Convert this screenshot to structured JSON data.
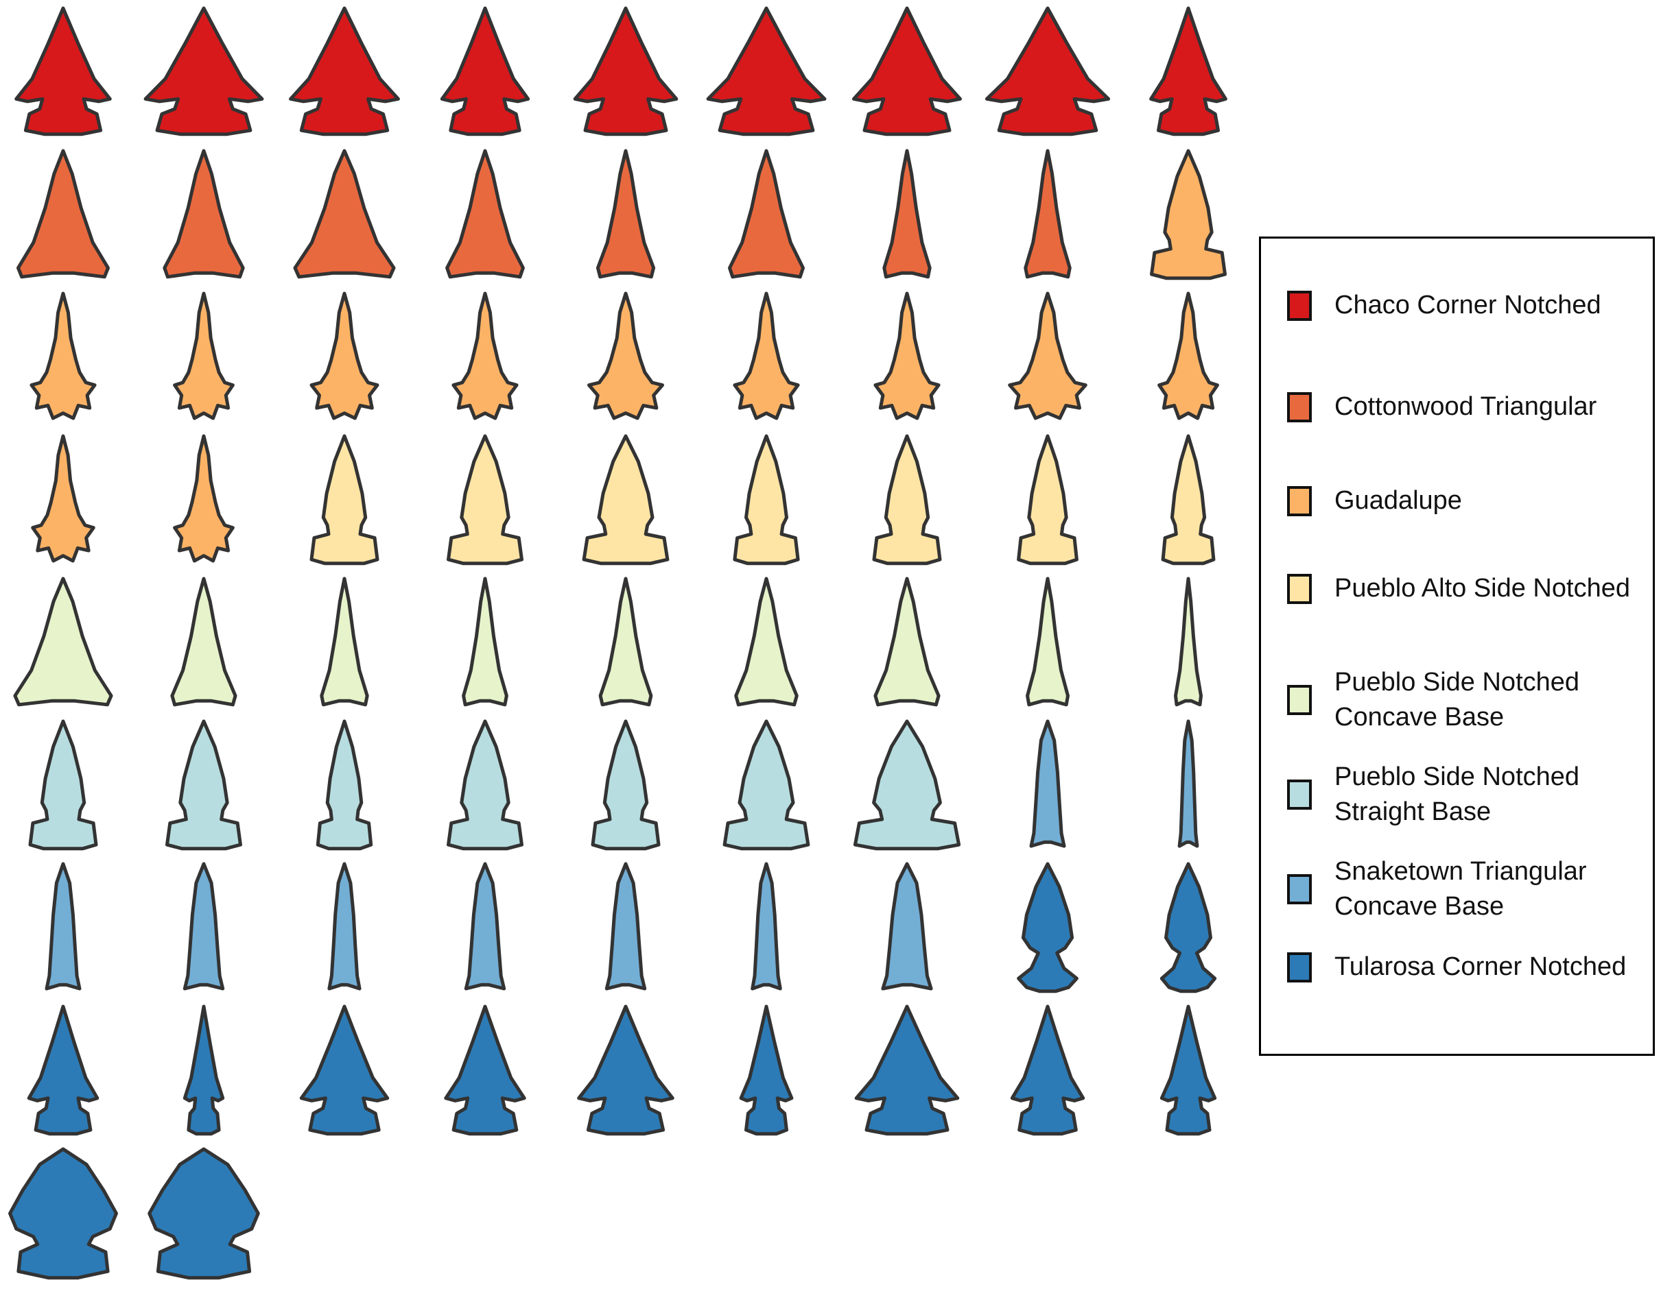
{
  "shape_kinds": [
    "corner-notched",
    "triangular",
    "side-notched",
    "guadalupe",
    "needle",
    "tularosa",
    "tularosa-wide"
  ],
  "types": [
    {
      "key": "chaco",
      "label": "Chaco Corner Notched",
      "color": "#d7191c"
    },
    {
      "key": "cottonwood",
      "label": "Cottonwood Triangular",
      "color": "#e9693f"
    },
    {
      "key": "guadalupe",
      "label": "Guadalupe",
      "color": "#fdb366"
    },
    {
      "key": "pa",
      "label": "Pueblo Alto Side Notched",
      "color": "#fee5a5"
    },
    {
      "key": "pscb",
      "label": "Pueblo Side Notched Concave Base",
      "color": "#e6f3cb"
    },
    {
      "key": "pssb",
      "label": "Pueblo Side Notched Straight Base",
      "color": "#b7dde0"
    },
    {
      "key": "snaketown",
      "label": "Snaketown Triangular Concave Base",
      "color": "#73aed5"
    },
    {
      "key": "tularosa",
      "label": "Tularosa Corner Notched",
      "color": "#2c7bb6"
    }
  ],
  "points": [
    {
      "type": "chaco",
      "shape": "corner-notched",
      "w": 0.74,
      "h": 0.92
    },
    {
      "type": "chaco",
      "shape": "corner-notched",
      "w": 0.92,
      "h": 0.92
    },
    {
      "type": "chaco",
      "shape": "corner-notched",
      "w": 0.85,
      "h": 0.92
    },
    {
      "type": "chaco",
      "shape": "corner-notched",
      "w": 0.68,
      "h": 0.92
    },
    {
      "type": "chaco",
      "shape": "corner-notched",
      "w": 0.8,
      "h": 0.92
    },
    {
      "type": "chaco",
      "shape": "corner-notched",
      "w": 0.92,
      "h": 0.92
    },
    {
      "type": "chaco",
      "shape": "corner-notched",
      "w": 0.84,
      "h": 0.92
    },
    {
      "type": "chaco",
      "shape": "corner-notched",
      "w": 0.96,
      "h": 0.92
    },
    {
      "type": "chaco",
      "shape": "corner-notched",
      "w": 0.59,
      "h": 0.92
    },
    {
      "type": "cottonwood",
      "shape": "triangular",
      "w": 0.71,
      "h": 0.93
    },
    {
      "type": "cottonwood",
      "shape": "triangular",
      "w": 0.62,
      "h": 0.93
    },
    {
      "type": "cottonwood",
      "shape": "triangular",
      "w": 0.78,
      "h": 0.93
    },
    {
      "type": "cottonwood",
      "shape": "triangular",
      "w": 0.6,
      "h": 0.93
    },
    {
      "type": "cottonwood",
      "shape": "triangular",
      "w": 0.44,
      "h": 0.93
    },
    {
      "type": "cottonwood",
      "shape": "triangular",
      "w": 0.58,
      "h": 0.93
    },
    {
      "type": "cottonwood",
      "shape": "triangular",
      "w": 0.36,
      "h": 0.93
    },
    {
      "type": "cottonwood",
      "shape": "triangular",
      "w": 0.35,
      "h": 0.93
    },
    {
      "type": "guadalupe",
      "shape": "side-notched",
      "w": 0.58,
      "h": 0.93
    },
    {
      "type": "guadalupe",
      "shape": "guadalupe",
      "w": 0.5,
      "h": 0.93
    },
    {
      "type": "guadalupe",
      "shape": "guadalupe",
      "w": 0.46,
      "h": 0.93
    },
    {
      "type": "guadalupe",
      "shape": "guadalupe",
      "w": 0.52,
      "h": 0.93
    },
    {
      "type": "guadalupe",
      "shape": "guadalupe",
      "w": 0.5,
      "h": 0.93
    },
    {
      "type": "guadalupe",
      "shape": "guadalupe",
      "w": 0.58,
      "h": 0.93
    },
    {
      "type": "guadalupe",
      "shape": "guadalupe",
      "w": 0.5,
      "h": 0.93
    },
    {
      "type": "guadalupe",
      "shape": "guadalupe",
      "w": 0.5,
      "h": 0.93
    },
    {
      "type": "guadalupe",
      "shape": "guadalupe",
      "w": 0.6,
      "h": 0.93
    },
    {
      "type": "guadalupe",
      "shape": "guadalupe",
      "w": 0.46,
      "h": 0.93
    },
    {
      "type": "guadalupe",
      "shape": "guadalupe",
      "w": 0.48,
      "h": 0.93
    },
    {
      "type": "guadalupe",
      "shape": "guadalupe",
      "w": 0.46,
      "h": 0.93
    },
    {
      "type": "pa",
      "shape": "side-notched",
      "w": 0.52,
      "h": 0.93
    },
    {
      "type": "pa",
      "shape": "side-notched",
      "w": 0.58,
      "h": 0.93
    },
    {
      "type": "pa",
      "shape": "side-notched",
      "w": 0.66,
      "h": 0.93
    },
    {
      "type": "pa",
      "shape": "side-notched",
      "w": 0.5,
      "h": 0.93
    },
    {
      "type": "pa",
      "shape": "side-notched",
      "w": 0.52,
      "h": 0.93
    },
    {
      "type": "pa",
      "shape": "side-notched",
      "w": 0.46,
      "h": 0.93
    },
    {
      "type": "pa",
      "shape": "side-notched",
      "w": 0.4,
      "h": 0.93
    },
    {
      "type": "pscb",
      "shape": "triangular",
      "w": 0.76,
      "h": 0.93
    },
    {
      "type": "pscb",
      "shape": "triangular",
      "w": 0.5,
      "h": 0.93
    },
    {
      "type": "pscb",
      "shape": "triangular",
      "w": 0.36,
      "h": 0.93
    },
    {
      "type": "pscb",
      "shape": "triangular",
      "w": 0.34,
      "h": 0.93
    },
    {
      "type": "pscb",
      "shape": "triangular",
      "w": 0.4,
      "h": 0.93
    },
    {
      "type": "pscb",
      "shape": "triangular",
      "w": 0.48,
      "h": 0.93
    },
    {
      "type": "pscb",
      "shape": "triangular",
      "w": 0.5,
      "h": 0.93
    },
    {
      "type": "pscb",
      "shape": "triangular",
      "w": 0.32,
      "h": 0.93
    },
    {
      "type": "pscb",
      "shape": "triangular",
      "w": 0.2,
      "h": 0.93
    },
    {
      "type": "pssb",
      "shape": "side-notched",
      "w": 0.52,
      "h": 0.93
    },
    {
      "type": "pssb",
      "shape": "side-notched",
      "w": 0.58,
      "h": 0.93
    },
    {
      "type": "pssb",
      "shape": "side-notched",
      "w": 0.42,
      "h": 0.93
    },
    {
      "type": "pssb",
      "shape": "side-notched",
      "w": 0.58,
      "h": 0.93
    },
    {
      "type": "pssb",
      "shape": "side-notched",
      "w": 0.52,
      "h": 0.93
    },
    {
      "type": "pssb",
      "shape": "side-notched",
      "w": 0.66,
      "h": 0.93
    },
    {
      "type": "pssb",
      "shape": "side-notched",
      "w": 0.82,
      "h": 0.93
    },
    {
      "type": "snaketown",
      "shape": "needle",
      "w": 0.26,
      "h": 0.93
    },
    {
      "type": "snaketown",
      "shape": "needle",
      "w": 0.14,
      "h": 0.93
    },
    {
      "type": "snaketown",
      "shape": "needle",
      "w": 0.26,
      "h": 0.93
    },
    {
      "type": "snaketown",
      "shape": "needle",
      "w": 0.3,
      "h": 0.93
    },
    {
      "type": "snaketown",
      "shape": "needle",
      "w": 0.24,
      "h": 0.93
    },
    {
      "type": "snaketown",
      "shape": "needle",
      "w": 0.3,
      "h": 0.93
    },
    {
      "type": "snaketown",
      "shape": "needle",
      "w": 0.3,
      "h": 0.93
    },
    {
      "type": "snaketown",
      "shape": "needle",
      "w": 0.22,
      "h": 0.93
    },
    {
      "type": "snaketown",
      "shape": "needle",
      "w": 0.38,
      "h": 0.93
    },
    {
      "type": "tularosa",
      "shape": "tularosa",
      "w": 0.46,
      "h": 0.93
    },
    {
      "type": "tularosa",
      "shape": "tularosa",
      "w": 0.42,
      "h": 0.93
    },
    {
      "type": "tularosa",
      "shape": "corner-notched",
      "w": 0.54,
      "h": 0.93
    },
    {
      "type": "tularosa",
      "shape": "corner-notched",
      "w": 0.3,
      "h": 0.93
    },
    {
      "type": "tularosa",
      "shape": "corner-notched",
      "w": 0.68,
      "h": 0.93
    },
    {
      "type": "tularosa",
      "shape": "corner-notched",
      "w": 0.62,
      "h": 0.93
    },
    {
      "type": "tularosa",
      "shape": "corner-notched",
      "w": 0.74,
      "h": 0.93
    },
    {
      "type": "tularosa",
      "shape": "corner-notched",
      "w": 0.4,
      "h": 0.93
    },
    {
      "type": "tularosa",
      "shape": "corner-notched",
      "w": 0.8,
      "h": 0.93
    },
    {
      "type": "tularosa",
      "shape": "corner-notched",
      "w": 0.56,
      "h": 0.93
    },
    {
      "type": "tularosa",
      "shape": "corner-notched",
      "w": 0.42,
      "h": 0.93
    },
    {
      "type": "tularosa",
      "shape": "tularosa-wide",
      "w": 0.84,
      "h": 0.94
    },
    {
      "type": "tularosa",
      "shape": "tularosa-wide",
      "w": 0.86,
      "h": 0.94
    }
  ],
  "outline_color": "#333333"
}
